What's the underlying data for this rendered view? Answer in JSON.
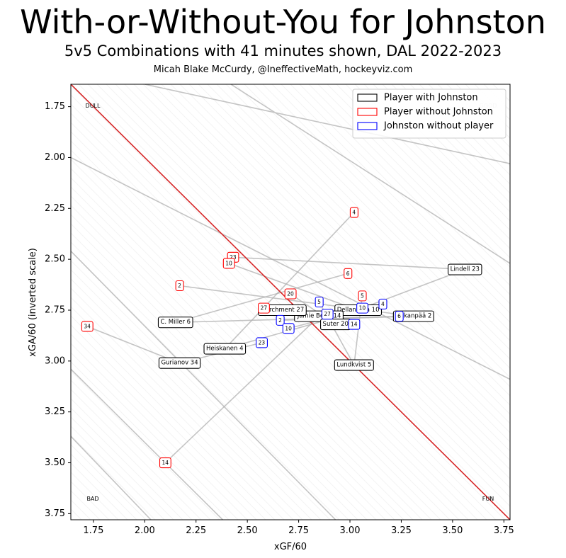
{
  "chart_data": {
    "type": "scatter",
    "title": "With-or-Without-You for Johnston",
    "subtitle": "5v5 Combinations with 41 minutes shown, DAL 2022-2023",
    "credit": "Micah Blake McCurdy, @IneffectiveMath, hockeyviz.com",
    "xlabel": "xGF/60",
    "ylabel": "xGA/60 (inverted scale)",
    "xlim": [
      1.64,
      3.78
    ],
    "ylim": [
      1.64,
      3.78
    ],
    "y_inverted": true,
    "xticks": [
      "1.75",
      "2.00",
      "2.25",
      "2.50",
      "2.75",
      "3.00",
      "3.25",
      "3.50",
      "3.75"
    ],
    "xtick_values": [
      1.75,
      2.0,
      2.25,
      2.5,
      2.75,
      3.0,
      3.25,
      3.5,
      3.75
    ],
    "yticks": [
      "1.75",
      "2.00",
      "2.25",
      "2.50",
      "2.75",
      "3.00",
      "3.25",
      "3.50",
      "3.75"
    ],
    "ytick_values": [
      1.75,
      2.0,
      2.25,
      2.5,
      2.75,
      3.0,
      3.25,
      3.5,
      3.75
    ],
    "grid": false,
    "legend_position": "top-right",
    "legend": [
      {
        "label": "Player with Johnston",
        "color": "#000000"
      },
      {
        "label": "Player without Johnston",
        "color": "#ff0000"
      },
      {
        "label": "Johnston without player",
        "color": "#0000ff"
      }
    ],
    "corner_labels": {
      "top_left": "DULL",
      "top_right": "GOOD",
      "bottom_left": "BAD",
      "bottom_right": "FUN"
    },
    "diagonal_color": "#d62728",
    "contour_color": "#c4c4c4",
    "reference_diagonal": [
      [
        1.64,
        1.64
      ],
      [
        3.78,
        3.78
      ]
    ],
    "contours": [
      [
        [
          2.0,
          1.64
        ],
        [
          3.78,
          2.03
        ]
      ],
      [
        [
          2.42,
          1.64
        ],
        [
          3.78,
          2.52
        ]
      ],
      [
        [
          1.64,
          2.0
        ],
        [
          3.78,
          3.09
        ]
      ],
      [
        [
          1.64,
          2.46
        ],
        [
          2.93,
          3.78
        ]
      ],
      [
        [
          1.64,
          3.04
        ],
        [
          2.38,
          3.78
        ]
      ],
      [
        [
          1.64,
          3.37
        ],
        [
          2.03,
          3.78
        ]
      ]
    ],
    "series": [
      {
        "name": "Player with Johnston",
        "color": "#000000",
        "label_size": 8.5,
        "points": [
          {
            "label": "Lindell 23",
            "x": 3.56,
            "y": 2.55
          },
          {
            "label": "Hakanpää 2",
            "x": 3.31,
            "y": 2.78
          },
          {
            "label": "Dellandrea 10",
            "x": 3.04,
            "y": 2.75
          },
          {
            "label": "Jamie Benn 14",
            "x": 2.85,
            "y": 2.78
          },
          {
            "label": "Marchment 27",
            "x": 2.67,
            "y": 2.75
          },
          {
            "label": "Suter 20",
            "x": 2.93,
            "y": 2.82
          },
          {
            "label": "C. Miller 6",
            "x": 2.15,
            "y": 2.81
          },
          {
            "label": "Heiskanen 4",
            "x": 2.39,
            "y": 2.94
          },
          {
            "label": "Gurianov 34",
            "x": 2.17,
            "y": 3.01
          },
          {
            "label": "Lundkvist 5",
            "x": 3.02,
            "y": 3.02
          }
        ]
      },
      {
        "name": "Player without Johnston",
        "color": "#ff0000",
        "label_size": 7.5,
        "points": [
          {
            "label": "4",
            "x": 3.02,
            "y": 2.27
          },
          {
            "label": "23",
            "x": 2.43,
            "y": 2.49
          },
          {
            "label": "10",
            "x": 2.41,
            "y": 2.52
          },
          {
            "label": "6",
            "x": 2.99,
            "y": 2.57
          },
          {
            "label": "2",
            "x": 2.17,
            "y": 2.63
          },
          {
            "label": "20",
            "x": 2.71,
            "y": 2.67
          },
          {
            "label": "5",
            "x": 3.06,
            "y": 2.68
          },
          {
            "label": "27",
            "x": 2.58,
            "y": 2.74
          },
          {
            "label": "34",
            "x": 1.72,
            "y": 2.83
          },
          {
            "label": "14",
            "x": 2.1,
            "y": 3.5
          }
        ]
      },
      {
        "name": "Johnston without player",
        "color": "#0000ff",
        "label_size": 7.5,
        "points": [
          {
            "label": "5",
            "x": 2.85,
            "y": 2.71
          },
          {
            "label": "4",
            "x": 3.16,
            "y": 2.72
          },
          {
            "label": "10",
            "x": 3.06,
            "y": 2.74
          },
          {
            "label": "27",
            "x": 2.89,
            "y": 2.77
          },
          {
            "label": "6",
            "x": 3.24,
            "y": 2.78
          },
          {
            "label": "2",
            "x": 2.66,
            "y": 2.8
          },
          {
            "label": "10",
            "x": 2.7,
            "y": 2.84
          },
          {
            "label": "14",
            "x": 3.02,
            "y": 2.82
          },
          {
            "label": "23",
            "x": 2.57,
            "y": 2.91
          }
        ]
      }
    ],
    "connections": [
      {
        "from": [
          3.56,
          2.55
        ],
        "to": [
          2.43,
          2.49
        ]
      },
      {
        "from": [
          3.56,
          2.55
        ],
        "to": [
          3.06,
          2.74
        ]
      },
      {
        "from": [
          3.31,
          2.78
        ],
        "to": [
          2.17,
          2.63
        ]
      },
      {
        "from": [
          3.31,
          2.78
        ],
        "to": [
          2.66,
          2.8
        ]
      },
      {
        "from": [
          3.04,
          2.75
        ],
        "to": [
          2.41,
          2.52
        ]
      },
      {
        "from": [
          3.04,
          2.75
        ],
        "to": [
          2.7,
          2.84
        ]
      },
      {
        "from": [
          2.85,
          2.78
        ],
        "to": [
          2.1,
          3.5
        ]
      },
      {
        "from": [
          2.85,
          2.78
        ],
        "to": [
          3.02,
          2.82
        ]
      },
      {
        "from": [
          2.67,
          2.75
        ],
        "to": [
          2.58,
          2.74
        ]
      },
      {
        "from": [
          2.67,
          2.75
        ],
        "to": [
          2.89,
          2.77
        ]
      },
      {
        "from": [
          2.93,
          2.82
        ],
        "to": [
          2.71,
          2.67
        ]
      },
      {
        "from": [
          2.15,
          2.81
        ],
        "to": [
          2.99,
          2.57
        ]
      },
      {
        "from": [
          2.15,
          2.81
        ],
        "to": [
          3.24,
          2.78
        ]
      },
      {
        "from": [
          2.39,
          2.94
        ],
        "to": [
          3.02,
          2.27
        ]
      },
      {
        "from": [
          2.39,
          2.94
        ],
        "to": [
          3.16,
          2.72
        ]
      },
      {
        "from": [
          2.17,
          3.01
        ],
        "to": [
          1.72,
          2.83
        ]
      },
      {
        "from": [
          2.17,
          3.01
        ],
        "to": [
          2.57,
          2.91
        ]
      },
      {
        "from": [
          3.02,
          3.02
        ],
        "to": [
          3.06,
          2.68
        ]
      },
      {
        "from": [
          3.02,
          3.02
        ],
        "to": [
          2.85,
          2.71
        ]
      }
    ]
  }
}
